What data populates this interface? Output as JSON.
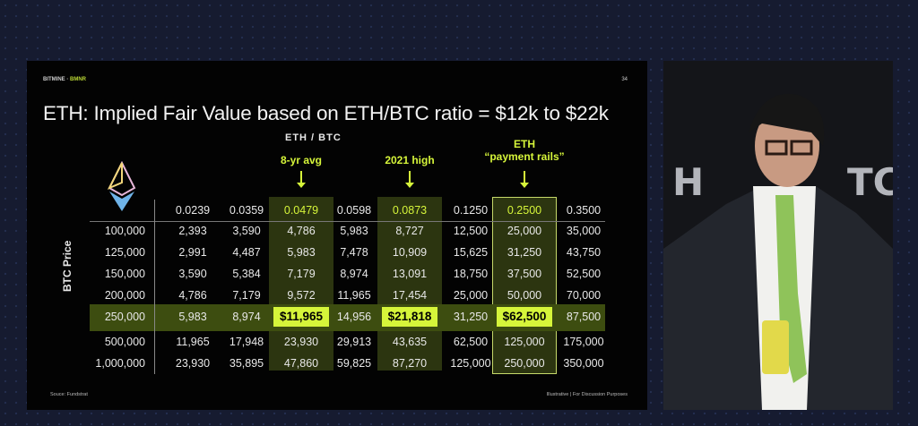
{
  "slide": {
    "brand": "BITMINE",
    "brand_ticker": "BMNR",
    "page_number": "34",
    "title": "ETH: Implied Fair Value based on ETH/BTC ratio = $12k to $22k",
    "column_axis_label": "ETH / BTC",
    "row_axis_label": "BTC Price",
    "callouts": [
      {
        "label": "8-yr avg",
        "column": 2
      },
      {
        "label": "2021 high",
        "column": 4
      },
      {
        "label_line1": "ETH",
        "label": "“payment rails”",
        "column": 6
      }
    ],
    "columns": [
      "0.0239",
      "0.0359",
      "0.0479",
      "0.0598",
      "0.0873",
      "0.1250",
      "0.2500",
      "0.3500"
    ],
    "rows": [
      {
        "btc": "100,000",
        "values": [
          "2,393",
          "3,590",
          "4,786",
          "5,983",
          "8,727",
          "12,500",
          "25,000",
          "35,000"
        ]
      },
      {
        "btc": "125,000",
        "values": [
          "2,991",
          "4,487",
          "5,983",
          "7,478",
          "10,909",
          "15,625",
          "31,250",
          "43,750"
        ]
      },
      {
        "btc": "150,000",
        "values": [
          "3,590",
          "5,384",
          "7,179",
          "8,974",
          "13,091",
          "18,750",
          "37,500",
          "52,500"
        ]
      },
      {
        "btc": "200,000",
        "values": [
          "4,786",
          "7,179",
          "9,572",
          "11,965",
          "17,454",
          "25,000",
          "50,000",
          "70,000"
        ]
      },
      {
        "btc": "250,000",
        "values": [
          "5,983",
          "8,974",
          "$11,965",
          "14,956",
          "$21,818",
          "31,250",
          "$62,500",
          "87,500"
        ],
        "highlighted": true
      },
      {
        "btc": "500,000",
        "values": [
          "11,965",
          "17,948",
          "23,930",
          "29,913",
          "43,635",
          "62,500",
          "125,000",
          "175,000"
        ]
      },
      {
        "btc": "1,000,000",
        "values": [
          "23,930",
          "35,895",
          "47,860",
          "59,825",
          "87,270",
          "125,000",
          "250,000",
          "350,000"
        ]
      }
    ],
    "source": "Souce: Fundstrat",
    "disclaimer": "Illustrative  |  For Discussion Purposes",
    "colors": {
      "accent": "#d6f53a",
      "band": "#3d4d10",
      "column_highlight": "#2c3510",
      "background": "#030303"
    },
    "logo": "ethereum-logo"
  },
  "video": {
    "content": "speaker-camera-feed"
  }
}
